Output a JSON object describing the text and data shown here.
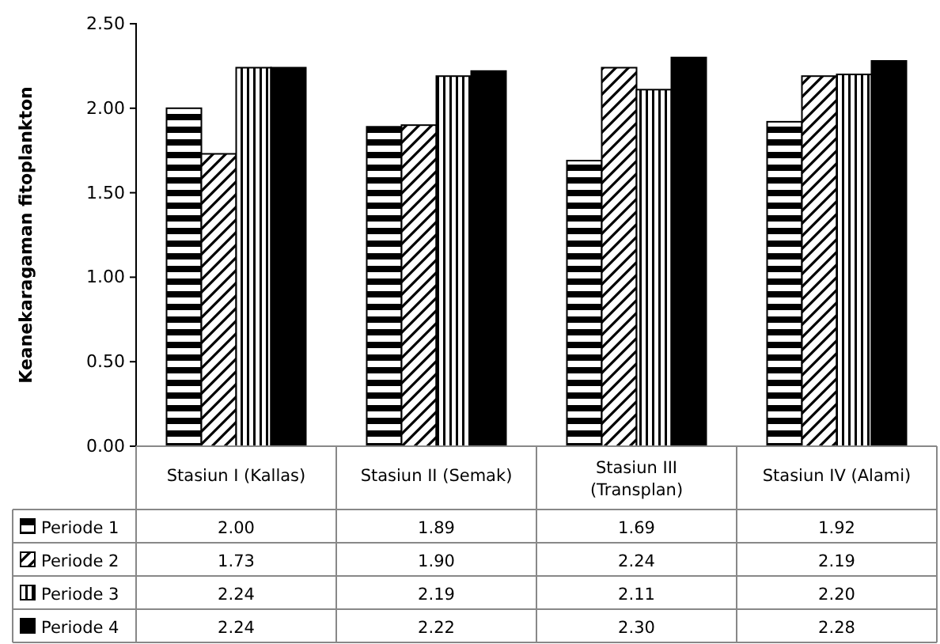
{
  "chart_data": {
    "type": "bar",
    "ylabel": "Keanekaragaman fitoplankton",
    "categories": [
      "Stasiun I (Kallas)",
      "Stasiun II (Semak)",
      "Stasiun III (Transplan)",
      "Stasiun IV (Alami)"
    ],
    "series": [
      {
        "name": "Periode 1",
        "color": "#000000",
        "values": [
          2.0,
          1.89,
          1.69,
          1.92
        ],
        "value_labels": [
          "2.00",
          "1.89",
          "1.69",
          "1.92"
        ]
      },
      {
        "name": "Periode 2",
        "color": "#000000",
        "values": [
          1.73,
          1.9,
          2.24,
          2.19
        ],
        "value_labels": [
          "1.73",
          "1.90",
          "2.24",
          "2.19"
        ]
      },
      {
        "name": "Periode 3",
        "color": "#000000",
        "values": [
          2.24,
          2.19,
          2.11,
          2.2
        ],
        "value_labels": [
          "2.24",
          "2.19",
          "2.11",
          "2.20"
        ]
      },
      {
        "name": "Periode 4",
        "color": "#000000",
        "values": [
          2.24,
          2.22,
          2.3,
          2.28
        ],
        "value_labels": [
          "2.24",
          "2.22",
          "2.30",
          "2.28"
        ]
      }
    ],
    "ylim": [
      0,
      2.5
    ],
    "yticks": [
      {
        "value": 0,
        "label": "0.00"
      },
      {
        "value": 0.5,
        "label": "0.50"
      },
      {
        "value": 1,
        "label": "1.00"
      },
      {
        "value": 1.5,
        "label": "1.50"
      },
      {
        "value": 2,
        "label": "2.00"
      },
      {
        "value": 2.5,
        "label": "2.50"
      }
    ],
    "legend": "bottom",
    "grid": false
  }
}
